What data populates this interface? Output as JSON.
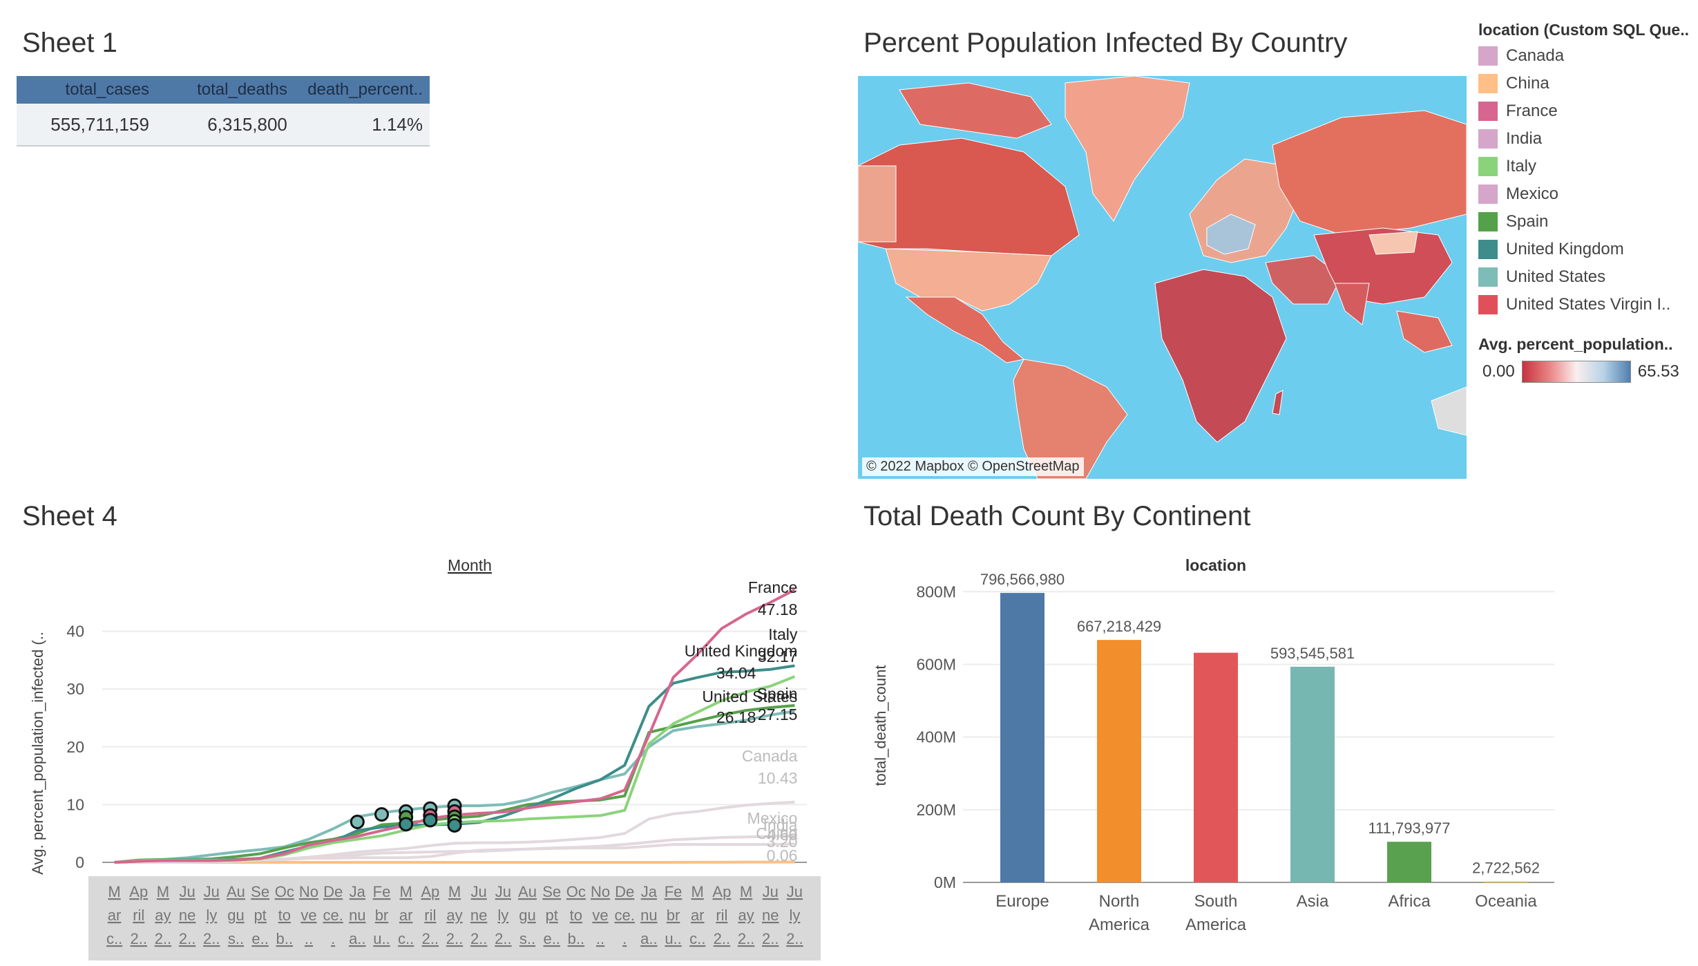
{
  "sheet1": {
    "title": "Sheet 1",
    "headers": [
      "total_cases",
      "total_deaths",
      "death_percent.."
    ],
    "values": [
      "555,711,159",
      "6,315,800",
      "1.14%"
    ]
  },
  "map": {
    "title": "Percent Population Infected By Country",
    "attribution": "© 2022 Mapbox © OpenStreetMap"
  },
  "legend": {
    "title": "location (Custom SQL Que..",
    "items": [
      {
        "label": "Canada",
        "color": "#d5a6c9"
      },
      {
        "label": "China",
        "color": "#ffbf86"
      },
      {
        "label": "France",
        "color": "#d6668f"
      },
      {
        "label": "India",
        "color": "#d5a6c9"
      },
      {
        "label": "Italy",
        "color": "#8bd37b"
      },
      {
        "label": "Mexico",
        "color": "#d5a6c9"
      },
      {
        "label": "Spain",
        "color": "#55a14b"
      },
      {
        "label": "United Kingdom",
        "color": "#3d8d8a"
      },
      {
        "label": "United States",
        "color": "#7ebcb7"
      },
      {
        "label": "United States Virgin I..",
        "color": "#e1505a"
      }
    ],
    "gradient_title": "Avg. percent_population..",
    "gradient_min": "0.00",
    "gradient_max": "65.53"
  },
  "sheet4": {
    "title": "Sheet 4",
    "x_header": "Month",
    "y_label": "Avg. percent_population_infected (..",
    "month_labels": [
      [
        "M",
        "ar",
        "c.."
      ],
      [
        "Ap",
        "ril",
        "2.."
      ],
      [
        "M",
        "ay",
        "2.."
      ],
      [
        "Ju",
        "ne",
        "2.."
      ],
      [
        "Ju",
        "ly",
        "2.."
      ],
      [
        "Au",
        "gu",
        "s.."
      ],
      [
        "Se",
        "pt",
        "e.."
      ],
      [
        "Oc",
        "to",
        "b.."
      ],
      [
        "No",
        "ve",
        ".."
      ],
      [
        "De",
        "ce.",
        "."
      ],
      [
        "Ja",
        "nu",
        "a.."
      ],
      [
        "Fe",
        "br",
        "u.."
      ],
      [
        "M",
        "ar",
        "c.."
      ],
      [
        "Ap",
        "ril",
        "2.."
      ],
      [
        "M",
        "ay",
        "2.."
      ],
      [
        "Ju",
        "ne",
        "2.."
      ],
      [
        "Ju",
        "ly",
        "2.."
      ],
      [
        "Au",
        "gu",
        "s.."
      ],
      [
        "Se",
        "pt",
        "e.."
      ],
      [
        "Oc",
        "to",
        "b.."
      ],
      [
        "No",
        "ve",
        ".."
      ],
      [
        "De",
        "ce.",
        "."
      ],
      [
        "Ja",
        "nu",
        "a.."
      ],
      [
        "Fe",
        "br",
        "u.."
      ],
      [
        "M",
        "ar",
        "c.."
      ],
      [
        "Ap",
        "ril",
        "2.."
      ],
      [
        "M",
        "ay",
        "2.."
      ],
      [
        "Ju",
        "ne",
        "2.."
      ],
      [
        "Ju",
        "ly",
        "2.."
      ]
    ]
  },
  "deaths": {
    "title": "Total Death Count By Continent",
    "x_header": "location",
    "y_label": "total_death_count"
  },
  "chart_data": [
    {
      "type": "line",
      "xlabel": "Month",
      "ylabel": "Avg. percent_population_infected (..",
      "ylim": [
        0,
        50
      ],
      "y_ticks": [
        0,
        10,
        20,
        30,
        40
      ],
      "categories": [
        "2020-03",
        "2020-04",
        "2020-05",
        "2020-06",
        "2020-07",
        "2020-08",
        "2020-09",
        "2020-10",
        "2020-11",
        "2020-12",
        "2021-01",
        "2021-02",
        "2021-03",
        "2021-04",
        "2021-05",
        "2021-06",
        "2021-07",
        "2021-08",
        "2021-09",
        "2021-10",
        "2021-11",
        "2021-12",
        "2022-01",
        "2022-02",
        "2022-03",
        "2022-04",
        "2022-05",
        "2022-06",
        "2022-07"
      ],
      "series": [
        {
          "name": "France",
          "color": "#d6668f",
          "end_label": "47.18",
          "label_color": "#222",
          "values": [
            0.0,
            0.2,
            0.3,
            0.3,
            0.3,
            0.4,
            0.7,
            1.5,
            3.0,
            3.8,
            4.5,
            5.5,
            6.4,
            7.6,
            8.2,
            8.5,
            8.7,
            9.4,
            10.0,
            10.5,
            11.0,
            12.5,
            22.0,
            32.0,
            36.0,
            40.5,
            43.0,
            45.0,
            47.18
          ]
        },
        {
          "name": "Italy",
          "color": "#8bd37b",
          "end_label": "32.17",
          "label_color": "#222",
          "values": [
            0.0,
            0.3,
            0.4,
            0.4,
            0.4,
            0.4,
            0.6,
            1.3,
            2.5,
            3.4,
            4.0,
            4.6,
            5.6,
            6.5,
            6.9,
            7.1,
            7.2,
            7.5,
            7.7,
            7.9,
            8.1,
            9.0,
            20.5,
            24.0,
            26.0,
            28.0,
            29.5,
            30.5,
            32.17
          ]
        },
        {
          "name": "United Kingdom",
          "color": "#3d8d8a",
          "end_label": "34.04",
          "label_color": "#222",
          "values": [
            0.0,
            0.2,
            0.4,
            0.5,
            0.5,
            0.5,
            0.7,
            1.8,
            2.8,
            3.6,
            5.5,
            6.1,
            6.4,
            6.5,
            6.6,
            6.9,
            8.0,
            9.5,
            11.0,
            12.8,
            14.3,
            16.8,
            27.0,
            31.0,
            32.0,
            32.9,
            33.1,
            33.4,
            34.04
          ]
        },
        {
          "name": "Spain",
          "color": "#55a14b",
          "end_label": "27.15",
          "label_color": "#222",
          "values": [
            0.0,
            0.4,
            0.5,
            0.5,
            0.6,
            1.0,
            1.5,
            2.5,
            3.4,
            4.0,
            5.0,
            6.5,
            6.8,
            7.3,
            7.7,
            8.0,
            9.0,
            10.0,
            10.4,
            10.6,
            10.8,
            11.5,
            22.5,
            23.5,
            24.5,
            25.5,
            26.3,
            26.8,
            27.15
          ]
        },
        {
          "name": "United States",
          "color": "#7ebcb7",
          "end_label": "26.18",
          "label_color": "#222",
          "values": [
            0.0,
            0.3,
            0.5,
            0.8,
            1.3,
            1.8,
            2.2,
            2.7,
            4.0,
            5.8,
            7.9,
            8.6,
            9.1,
            9.5,
            9.8,
            9.8,
            10.0,
            10.8,
            12.1,
            13.1,
            14.3,
            15.3,
            20.0,
            22.8,
            23.5,
            24.0,
            24.6,
            25.5,
            26.18
          ]
        },
        {
          "name": "Canada",
          "color": "#e2d8de",
          "end_label": "10.43",
          "label_color": "#bbb",
          "values": [
            0.0,
            0.1,
            0.2,
            0.2,
            0.3,
            0.3,
            0.4,
            0.6,
            0.9,
            1.3,
            1.8,
            2.1,
            2.4,
            2.9,
            3.3,
            3.4,
            3.4,
            3.5,
            3.7,
            4.0,
            4.3,
            5.0,
            7.5,
            8.4,
            8.8,
            9.4,
            9.9,
            10.2,
            10.43
          ]
        },
        {
          "name": "Mexico",
          "color": "#e2d8de",
          "end_label": "4.60",
          "label_color": "#bbb",
          "values": [
            0.0,
            0.0,
            0.0,
            0.1,
            0.2,
            0.3,
            0.4,
            0.5,
            0.7,
            1.0,
            1.3,
            1.6,
            1.7,
            1.8,
            1.9,
            1.9,
            2.1,
            2.3,
            2.5,
            2.6,
            2.8,
            3.1,
            3.5,
            3.9,
            4.1,
            4.3,
            4.4,
            4.5,
            4.6
          ]
        },
        {
          "name": "India",
          "color": "#e2d8de",
          "end_label": "3.20",
          "label_color": "#bbb",
          "values": [
            0.0,
            0.0,
            0.0,
            0.0,
            0.1,
            0.2,
            0.4,
            0.6,
            0.7,
            0.7,
            0.8,
            0.8,
            0.8,
            1.0,
            1.6,
            2.1,
            2.2,
            2.3,
            2.4,
            2.5,
            2.5,
            2.5,
            2.8,
            3.1,
            3.1,
            3.1,
            3.1,
            3.1,
            3.2
          ]
        },
        {
          "name": "China",
          "color": "#ffbf86",
          "end_label": "0.06",
          "label_color": "#bbb",
          "values": [
            0.0,
            0.0,
            0.0,
            0.0,
            0.0,
            0.0,
            0.0,
            0.0,
            0.0,
            0.0,
            0.0,
            0.0,
            0.0,
            0.0,
            0.0,
            0.0,
            0.0,
            0.0,
            0.0,
            0.0,
            0.0,
            0.0,
            0.0,
            0.0,
            0.01,
            0.02,
            0.04,
            0.05,
            0.06
          ]
        }
      ],
      "highlight_points": {
        "categories": [
          "2021-01",
          "2021-02",
          "2021-03",
          "2021-03",
          "2021-03",
          "2021-04",
          "2021-04",
          "2021-04",
          "2021-05",
          "2021-05",
          "2021-05",
          "2021-05",
          "2021-05"
        ],
        "values": [
          7.0,
          8.3,
          8.8,
          7.8,
          6.6,
          9.3,
          8.1,
          7.3,
          9.8,
          8.8,
          7.9,
          7.1,
          6.4
        ],
        "fills": [
          "#7ebcb7",
          "#7ebcb7",
          "#7ebcb7",
          "#55a14b",
          "#3d8d8a",
          "#7ebcb7",
          "#d6668f",
          "#3d8d8a",
          "#7ebcb7",
          "#d6668f",
          "#55a14b",
          "#8bd37b",
          "#3d8d8a"
        ]
      }
    },
    {
      "type": "bar",
      "xlabel": "location",
      "ylabel": "total_death_count",
      "ylim": [
        0,
        850000000
      ],
      "y_ticks": [
        0,
        200000000,
        400000000,
        600000000,
        800000000
      ],
      "y_tick_labels": [
        "0M",
        "200M",
        "400M",
        "600M",
        "800M"
      ],
      "categories": [
        "Europe",
        "North America",
        "South America",
        "Asia",
        "Africa",
        "Oceania"
      ],
      "category_lines": [
        [
          "Europe"
        ],
        [
          "North",
          "America"
        ],
        [
          "South",
          "America"
        ],
        [
          "Asia"
        ],
        [
          "Africa"
        ],
        [
          "Oceania"
        ]
      ],
      "values": [
        796566980,
        667218429,
        632000000,
        593545581,
        111793977,
        2722562
      ],
      "value_labels": [
        "796,566,980",
        "667,218,429",
        "",
        "593,545,581",
        "111,793,977",
        "2,722,562"
      ],
      "colors": [
        "#4e79a7",
        "#f28e2b",
        "#e15759",
        "#76b7b2",
        "#59a14f",
        "#edc948"
      ]
    }
  ]
}
